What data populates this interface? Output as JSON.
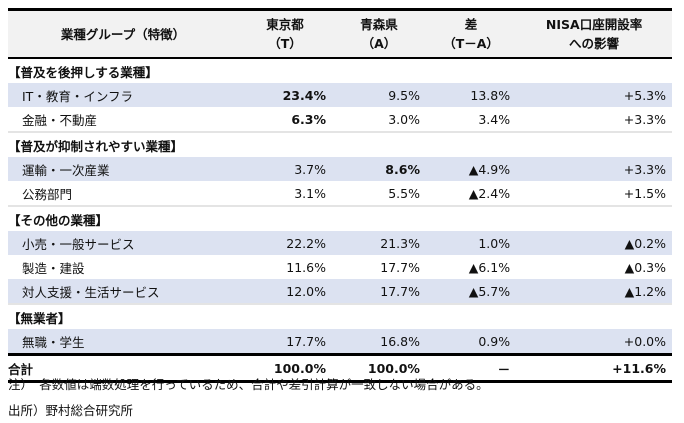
{
  "header": {
    "col0": "業種グループ（特徴）",
    "col1": [
      "東京都",
      "（T）"
    ],
    "col2": [
      "青森県",
      "（A）"
    ],
    "col3": [
      "差",
      "（T－A）"
    ],
    "col4": [
      "NISA口座開設率",
      "への影響"
    ]
  },
  "sections": [
    {
      "title": "【普及を後押しする業種】",
      "rows": [
        {
          "label": "IT・教育・インフラ",
          "t": "23.4%",
          "a": "9.5%",
          "d": "13.8%",
          "n": "+5.3%",
          "bold": [
            "t"
          ],
          "shade": true
        },
        {
          "label": "金融・不動産",
          "t": "6.3%",
          "a": "3.0%",
          "d": "3.4%",
          "n": "+3.3%",
          "bold": [
            "t"
          ],
          "shade": false
        }
      ]
    },
    {
      "title": "【普及が抑制されやすい業種】",
      "rows": [
        {
          "label": "運輸・一次産業",
          "t": "3.7%",
          "a": "8.6%",
          "d": "▲4.9%",
          "n": "+3.3%",
          "bold": [
            "a"
          ],
          "shade": true
        },
        {
          "label": "公務部門",
          "t": "3.1%",
          "a": "5.5%",
          "d": "▲2.4%",
          "n": "+1.5%",
          "bold": [],
          "shade": false
        }
      ]
    },
    {
      "title": "【その他の業種】",
      "rows": [
        {
          "label": "小売・一般サービス",
          "t": "22.2%",
          "a": "21.3%",
          "d": "1.0%",
          "n": "▲0.2%",
          "bold": [],
          "shade": true
        },
        {
          "label": "製造・建設",
          "t": "11.6%",
          "a": "17.7%",
          "d": "▲6.1%",
          "n": "▲0.3%",
          "bold": [],
          "shade": false
        },
        {
          "label": "対人支援・生活サービス",
          "t": "12.0%",
          "a": "17.7%",
          "d": "▲5.7%",
          "n": "▲1.2%",
          "bold": [],
          "shade": true
        }
      ]
    },
    {
      "title": "【無業者】",
      "rows": [
        {
          "label": "無職・学生",
          "t": "17.7%",
          "a": "16.8%",
          "d": "0.9%",
          "n": "+0.0%",
          "bold": [],
          "shade": true
        }
      ]
    }
  ],
  "total": {
    "label": "合計",
    "t": "100.0%",
    "a": "100.0%",
    "d": "－",
    "n": "+11.6%"
  },
  "notes": [
    "注）　各数値は端数処理を行っているため、合計や差引計算が一致しない場合がある。",
    "出所）野村総合研究所"
  ]
}
